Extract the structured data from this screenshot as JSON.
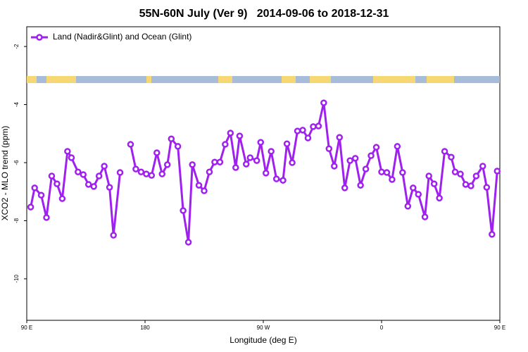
{
  "chart_data": {
    "type": "line",
    "title": "55N-60N July (Ver 9)   2014-09-06 to 2018-12-31",
    "xlabel": "Longitude (deg E)",
    "ylabel": "XCO2 - MLO trend (ppm)",
    "xlim": [
      90,
      450
    ],
    "ylim": [
      -11.43,
      -1.32
    ],
    "xticks": [
      {
        "value": 90,
        "label": "90 E"
      },
      {
        "value": 180,
        "label": "180"
      },
      {
        "value": 270,
        "label": "90 W"
      },
      {
        "value": 360,
        "label": "0"
      },
      {
        "value": 450,
        "label": "90 E"
      }
    ],
    "yticks": [
      -2,
      -4,
      -6,
      -8,
      -10
    ],
    "legend_position": "top-left",
    "series": [
      {
        "name": "Land (Nadir&Glint) and Ocean (Glint)",
        "color": "#a020f0",
        "x": [
          93,
          96,
          101,
          105,
          109,
          113,
          117,
          121,
          124,
          129,
          133,
          137,
          141,
          145,
          149,
          153,
          156,
          161,
          165,
          169,
          173,
          177,
          181,
          185,
          189,
          193,
          197,
          200,
          205,
          209,
          213,
          216,
          221,
          225,
          229,
          233,
          237,
          241,
          245,
          249,
          252,
          257,
          260,
          265,
          268,
          272,
          276,
          280,
          285,
          288,
          292,
          296,
          300,
          304,
          308,
          312,
          316,
          320,
          324,
          328,
          332,
          336,
          340,
          344,
          348,
          352,
          356,
          360,
          364,
          368,
          372,
          376,
          380,
          384,
          388,
          393,
          396,
          400,
          404,
          408,
          413,
          416,
          420,
          424,
          428,
          432,
          437,
          440,
          444,
          448
        ],
        "values": [
          -7.53,
          -6.87,
          -7.12,
          -7.89,
          -6.46,
          -6.73,
          -7.24,
          -5.61,
          -5.83,
          -6.32,
          -6.41,
          -6.75,
          -6.82,
          -6.46,
          -6.12,
          -6.85,
          -8.5,
          -6.34,
          null,
          -5.37,
          -6.22,
          -6.32,
          -6.39,
          -6.44,
          -5.66,
          -6.39,
          -6.07,
          -5.18,
          -5.44,
          -7.65,
          -8.74,
          -6.07,
          -6.78,
          -6.97,
          -6.32,
          -5.98,
          -5.98,
          -5.37,
          -4.98,
          -6.17,
          -5.08,
          -6.05,
          -5.83,
          -5.93,
          -5.3,
          -6.36,
          -5.61,
          -6.56,
          -6.61,
          -5.35,
          -6.0,
          -4.91,
          -4.88,
          -5.15,
          -4.76,
          -4.74,
          -3.94,
          -5.52,
          -6.12,
          -5.13,
          -6.87,
          -5.93,
          -5.85,
          -6.78,
          -6.22,
          -5.76,
          -5.47,
          -6.32,
          -6.34,
          -6.58,
          -5.44,
          -6.34,
          -7.5,
          -6.87,
          -7.09,
          -7.87,
          -6.46,
          -6.73,
          -7.22,
          -5.61,
          -5.81,
          -6.32,
          -6.39,
          -6.75,
          -6.8,
          -6.46,
          -6.12,
          -6.85,
          -8.47,
          -6.29
        ]
      }
    ]
  }
}
